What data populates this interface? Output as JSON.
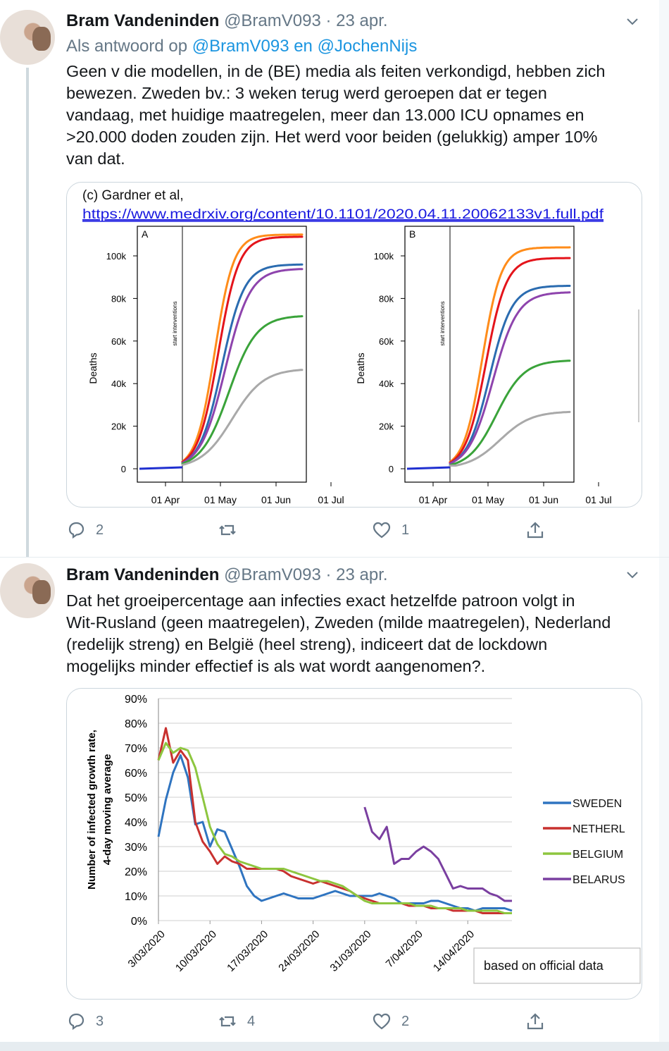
{
  "tweets": [
    {
      "author_name": "Bram Vandeninden",
      "handle": "@BramV093",
      "separator": " · ",
      "date": "23 apr.",
      "reply_prefix": "Als antwoord op ",
      "reply_users": "@BramV093 en @JochenNijs",
      "text_lines": [
        "Geen v die modellen, in de (BE) media als feiten verkondigd, hebben zich",
        "bewezen. Zweden bv.: 3 weken terug werd geroepen dat er tegen",
        "vandaag, met huidige maatregelen, meer dan 13.000 ICU opnames en",
        ">20.000 doden zouden zijn. Het werd voor beiden (gelukkig) amper 10%",
        "van dat."
      ],
      "media": {
        "credit": "(c) Gardner et al,",
        "link": "https://www.medrxiv.org/content/10.1101/2020.04.11.20062133v1.full.pdf"
      },
      "actions": {
        "replies": "2",
        "retweets": "",
        "likes": "1"
      }
    },
    {
      "author_name": "Bram Vandeninden",
      "handle": "@BramV093",
      "separator": " · ",
      "date": "23 apr.",
      "text_lines": [
        "Dat het groeipercentage aan infecties exact hetzelfde patroon volgt in",
        "Wit-Rusland (geen maatregelen), Zweden (milde maatregelen), Nederland",
        "(redelijk streng) en België (heel streng), indiceert dat de lockdown",
        "mogelijks minder effectief is als wat wordt aangenomen?."
      ],
      "actions": {
        "replies": "3",
        "retweets": "4",
        "likes": "2"
      }
    }
  ],
  "colors": {
    "orange": "#ff8c1a",
    "red": "#e4141b",
    "blue": "#2b6cb0",
    "purple": "#8e44ad",
    "green": "#3aa33a",
    "gray": "#a9a9a9",
    "sweden": "#2f74c0",
    "netherl": "#c8312f",
    "belgium": "#8dc63f",
    "belarus": "#7a3fa0"
  },
  "chart_data": [
    {
      "type": "line",
      "panel": "A",
      "ylabel": "Deaths",
      "annotation": "start interventions",
      "xticks": [
        "01 Apr",
        "01 May",
        "01 Jun",
        "01 Jul"
      ],
      "yticks": [
        "0",
        "20k",
        "40k",
        "60k",
        "80k",
        "100k"
      ],
      "ylim": [
        0,
        110000
      ],
      "series": [
        {
          "color": "orange",
          "plateau": 110000
        },
        {
          "color": "red",
          "plateau": 109000
        },
        {
          "color": "blue",
          "plateau": 96000
        },
        {
          "color": "purple",
          "plateau": 94000
        },
        {
          "color": "green",
          "plateau": 72000
        },
        {
          "color": "gray",
          "plateau": 47000
        }
      ]
    },
    {
      "type": "line",
      "panel": "B",
      "ylabel": "Deaths",
      "annotation": "start interventions",
      "xticks": [
        "01 Apr",
        "01 May",
        "01 Jun",
        "01 Jul"
      ],
      "yticks": [
        "0",
        "20k",
        "40k",
        "60k",
        "80k",
        "100k"
      ],
      "ylim": [
        0,
        110000
      ],
      "series": [
        {
          "color": "orange",
          "plateau": 104000
        },
        {
          "color": "red",
          "plateau": 99000
        },
        {
          "color": "blue",
          "plateau": 86000
        },
        {
          "color": "purple",
          "plateau": 83000
        },
        {
          "color": "green",
          "plateau": 51000
        },
        {
          "color": "gray",
          "plateau": 27000
        }
      ]
    },
    {
      "type": "line",
      "ylabel": "Number of infected growth rate, 4-day moving average",
      "yticks": [
        "0%",
        "10%",
        "20%",
        "30%",
        "40%",
        "50%",
        "60%",
        "70%",
        "80%",
        "90%"
      ],
      "ylim": [
        0,
        90
      ],
      "xticks": [
        "3/03/2020",
        "10/03/2020",
        "17/03/2020",
        "24/03/2020",
        "31/03/2020",
        "7/04/2020",
        "14/04/2020"
      ],
      "note": "based on official data",
      "legend": "right",
      "series": [
        {
          "name": "SWEDEN",
          "color": "sweden",
          "start": 0,
          "values": [
            34,
            49,
            60,
            67,
            58,
            39,
            40,
            30,
            37,
            36,
            29,
            22,
            14,
            10,
            8,
            9,
            10,
            11,
            10,
            9,
            9,
            9,
            10,
            11,
            12,
            11,
            10,
            10,
            10,
            10,
            11,
            10,
            9,
            7,
            7,
            7,
            7,
            8,
            8,
            7,
            6,
            5,
            5,
            4,
            5,
            5,
            5,
            5,
            4
          ]
        },
        {
          "name": "NETHERL",
          "color": "netherl",
          "start": 0,
          "values": [
            65,
            78,
            64,
            69,
            65,
            40,
            32,
            28,
            23,
            26,
            24,
            23,
            21,
            21,
            21,
            21,
            21,
            20,
            18,
            17,
            16,
            15,
            16,
            15,
            14,
            13,
            12,
            10,
            9,
            8,
            7,
            7,
            7,
            7,
            6,
            6,
            6,
            5,
            5,
            5,
            4,
            4,
            4,
            4,
            3,
            3,
            3,
            3,
            3
          ]
        },
        {
          "name": "BELGIUM",
          "color": "belgium",
          "start": 0,
          "values": [
            65,
            72,
            68,
            70,
            69,
            62,
            50,
            38,
            31,
            27,
            26,
            24,
            23,
            22,
            21,
            21,
            21,
            21,
            20,
            19,
            18,
            17,
            16,
            16,
            15,
            14,
            12,
            10,
            8,
            7,
            7,
            7,
            7,
            7,
            7,
            6,
            6,
            6,
            5,
            5,
            5,
            5,
            4,
            4,
            4,
            4,
            4,
            3,
            3
          ]
        },
        {
          "name": "BELARUS",
          "color": "belarus",
          "start": 28,
          "values": [
            46,
            36,
            33,
            38,
            23,
            25,
            25,
            28,
            30,
            28,
            25,
            19,
            13,
            14,
            13,
            13,
            13,
            11,
            10,
            8,
            8
          ]
        }
      ]
    }
  ]
}
